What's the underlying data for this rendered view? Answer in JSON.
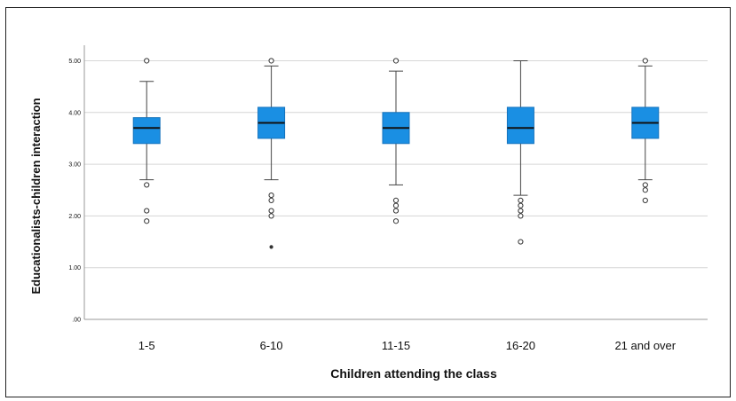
{
  "chart_data": {
    "type": "boxplot",
    "title": "",
    "xlabel": "Children attending the class",
    "ylabel": "Educationalists-children interaction",
    "ylim": [
      0,
      5.3
    ],
    "yticks": [
      0,
      1,
      2,
      3,
      4,
      5
    ],
    "ytick_labels": [
      ".00",
      "1.00",
      "2.00",
      "3.00",
      "4.00",
      "5.00"
    ],
    "grid": true,
    "box_color": "#1a8fe3",
    "median_color": "#111111",
    "categories": [
      "1-5",
      "6-10",
      "11-15",
      "16-20",
      "21 and over"
    ],
    "boxes": [
      {
        "q1": 3.4,
        "median": 3.7,
        "q3": 3.9,
        "whisker_low": 2.7,
        "whisker_high": 4.6,
        "outliers": [
          5.0,
          2.6,
          2.1,
          1.9
        ],
        "extremes": []
      },
      {
        "q1": 3.5,
        "median": 3.8,
        "q3": 4.1,
        "whisker_low": 2.7,
        "whisker_high": 4.9,
        "outliers": [
          5.0,
          2.4,
          2.3,
          2.1,
          2.0
        ],
        "extremes": [
          1.4
        ]
      },
      {
        "q1": 3.4,
        "median": 3.7,
        "q3": 4.0,
        "whisker_low": 2.6,
        "whisker_high": 4.8,
        "outliers": [
          5.0,
          2.3,
          2.2,
          2.1,
          1.9
        ],
        "extremes": []
      },
      {
        "q1": 3.4,
        "median": 3.7,
        "q3": 4.1,
        "whisker_low": 2.4,
        "whisker_high": 5.0,
        "outliers": [
          2.3,
          2.2,
          2.1,
          2.0,
          1.5
        ],
        "extremes": []
      },
      {
        "q1": 3.5,
        "median": 3.8,
        "q3": 4.1,
        "whisker_low": 2.7,
        "whisker_high": 4.9,
        "outliers": [
          5.0,
          2.6,
          2.5,
          2.3
        ],
        "extremes": []
      }
    ]
  }
}
